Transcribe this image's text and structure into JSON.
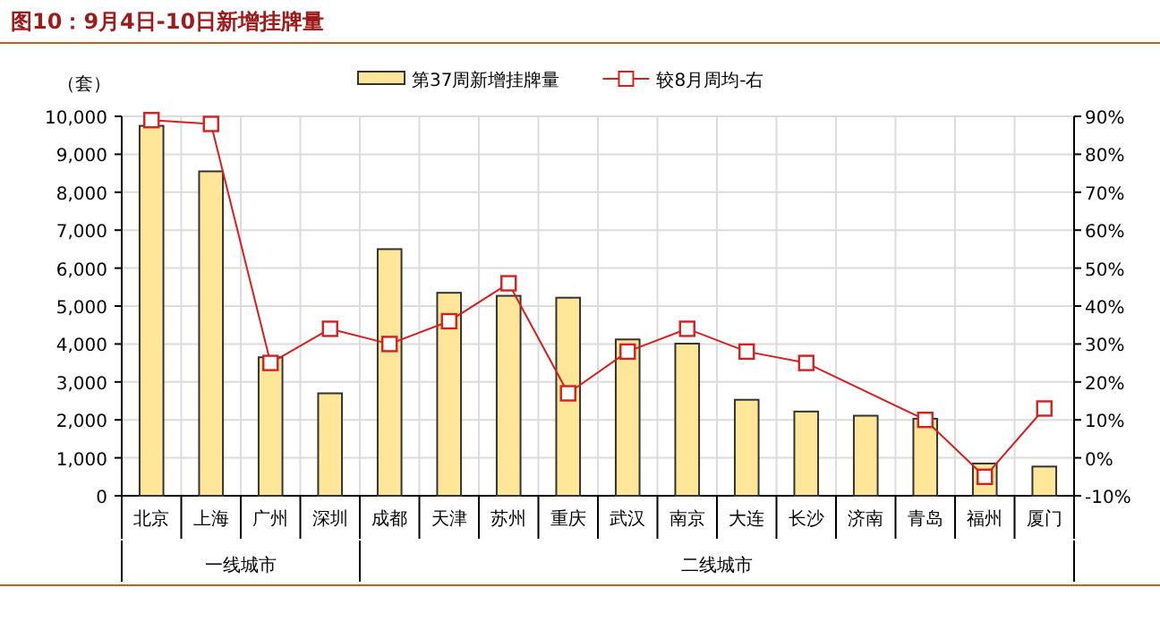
{
  "chart_data": {
    "type": "bar",
    "title": "图10：9月4日-10日新增挂牌量",
    "ylabel": "（套）",
    "categories": [
      "北京",
      "上海",
      "广州",
      "深圳",
      "成都",
      "天津",
      "苏州",
      "重庆",
      "武汉",
      "南京",
      "大连",
      "长沙",
      "济南",
      "青岛",
      "福州",
      "厦门"
    ],
    "series": [
      {
        "name": "第37周新增挂牌量",
        "color": "#ffe699",
        "values": [
          9750,
          8550,
          3650,
          2700,
          6500,
          5350,
          5270,
          5220,
          4120,
          4010,
          2530,
          2220,
          2110,
          2030,
          850,
          770
        ]
      },
      {
        "name": "较8月周均-右",
        "type": "line",
        "axis": "y2",
        "color": "#d42020",
        "marker": "square",
        "values": [
          89,
          88,
          25,
          34,
          30,
          36,
          46,
          17,
          28,
          34,
          28,
          25,
          null,
          10,
          -5,
          13
        ]
      }
    ],
    "ylim": [
      0,
      10000
    ],
    "yticks": [
      {
        "value": 0,
        "label": "0"
      },
      {
        "value": 1000,
        "label": "1,000"
      },
      {
        "value": 2000,
        "label": "2,000"
      },
      {
        "value": 3000,
        "label": "3,000"
      },
      {
        "value": 4000,
        "label": "4,000"
      },
      {
        "value": 5000,
        "label": "5,000"
      },
      {
        "value": 6000,
        "label": "6,000"
      },
      {
        "value": 7000,
        "label": "7,000"
      },
      {
        "value": 8000,
        "label": "8,000"
      },
      {
        "value": 9000,
        "label": "9,000"
      },
      {
        "value": 10000,
        "label": "10,000"
      }
    ],
    "y2lim": [
      -10,
      90
    ],
    "y2ticks": [
      {
        "value": -10,
        "label": "-10%"
      },
      {
        "value": 0,
        "label": "0%"
      },
      {
        "value": 10,
        "label": "10%"
      },
      {
        "value": 20,
        "label": "20%"
      },
      {
        "value": 30,
        "label": "30%"
      },
      {
        "value": 40,
        "label": "40%"
      },
      {
        "value": 50,
        "label": "50%"
      },
      {
        "value": 60,
        "label": "60%"
      },
      {
        "value": 70,
        "label": "70%"
      },
      {
        "value": 80,
        "label": "80%"
      },
      {
        "value": 90,
        "label": "90%"
      }
    ],
    "annotations": [
      "一线城市",
      "二线城市"
    ],
    "grid": true,
    "legend": "top"
  }
}
